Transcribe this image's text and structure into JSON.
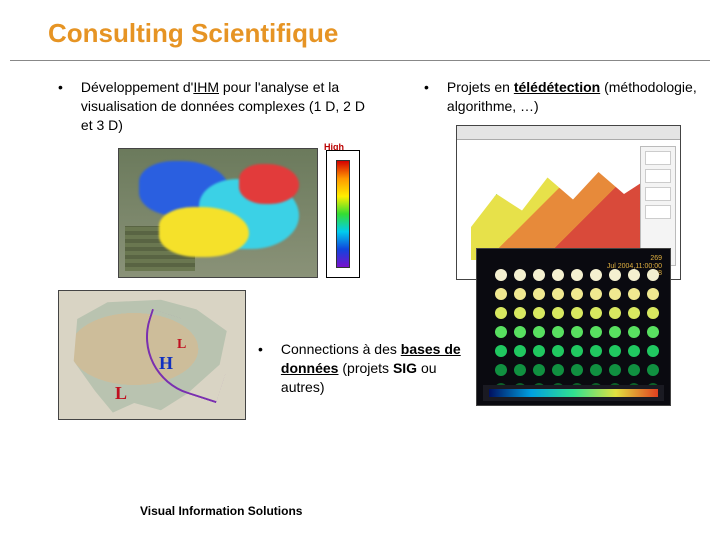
{
  "title": {
    "text": "Consulting Scientifique",
    "color": "#e69424"
  },
  "bullets": {
    "left": {
      "pre": "Développement d'",
      "ihm": "IHM",
      "post": " pour l'analyse et la visualisation de données complexes (1 D, 2 D et 3 D)"
    },
    "right": {
      "pre": "Projets en  ",
      "link": "télédétection",
      "post": " (méthodologie, algorithme, …)"
    },
    "middle": {
      "pre": "Connections à des ",
      "link": "bases de données",
      "post": " (projets ",
      "sig": "SIG",
      "post2": " ou autres)"
    }
  },
  "footer": "Visual Information Solutions",
  "figures": {
    "thermal": {
      "type": "heatmap-overlay",
      "colorbar_label_high": "High",
      "colorbar_colors": [
        "#d40000",
        "#ff9900",
        "#ffee00",
        "#33dd33",
        "#00ccee",
        "#1144dd",
        "#7711cc"
      ]
    },
    "map": {
      "type": "weather-map",
      "labels": [
        {
          "text": "H",
          "color": "#1030c0"
        },
        {
          "text": "L",
          "color": "#c01020"
        },
        {
          "text": "L",
          "color": "#c01020"
        }
      ]
    },
    "surface3d": {
      "type": "3d-surface",
      "palette": [
        "#7ecf4a",
        "#e7e14a",
        "#e78a3a",
        "#d94a3a"
      ]
    },
    "dotgrid": {
      "type": "microscopy-grid",
      "cols": 9,
      "rows": 7,
      "stamp": "269\nJul 2004,11:00:00\n28",
      "row_colors": [
        "#f4f0d0",
        "#f0e890",
        "#d8e860",
        "#58e060",
        "#20c860",
        "#109040",
        "#0c6028"
      ],
      "legend_gradient": [
        "#001060",
        "#00a0e0",
        "#30e090",
        "#e0e040",
        "#e04020"
      ]
    }
  }
}
